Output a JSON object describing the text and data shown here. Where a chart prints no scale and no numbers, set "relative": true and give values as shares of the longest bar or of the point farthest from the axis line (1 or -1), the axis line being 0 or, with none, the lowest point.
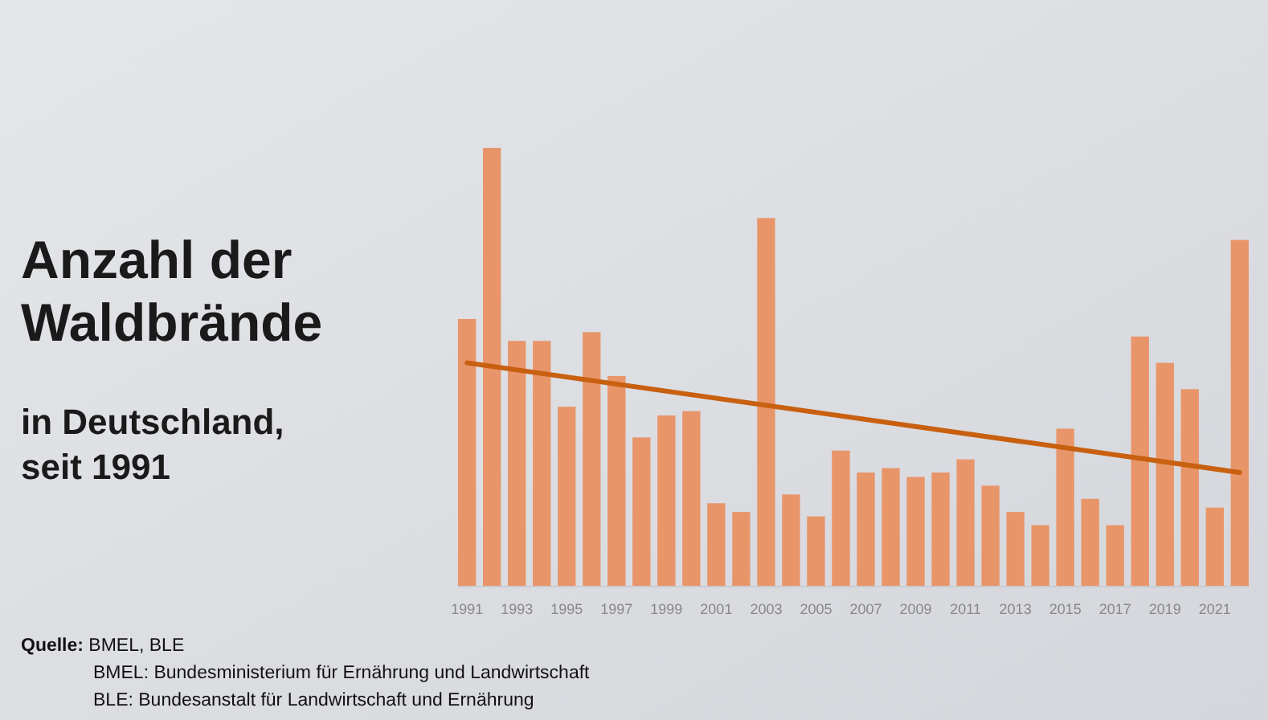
{
  "chart_data": {
    "type": "bar",
    "title": "Anzahl der\nWaldbrände",
    "subtitle": "in Deutschland,\nseit 1991",
    "relative": true,
    "categories": [
      "1991",
      null,
      "1993",
      null,
      "1995",
      null,
      "1997",
      null,
      "1999",
      null,
      "2001",
      null,
      "2003",
      null,
      "2005",
      null,
      "2007",
      null,
      "2009",
      null,
      "2011",
      null,
      "2013",
      null,
      "2015",
      null,
      "2017",
      null,
      "2019",
      null,
      "2021",
      null
    ],
    "series": [
      {
        "color": "#e8956a",
        "values": [
          0.61,
          1,
          0.56,
          0.56,
          0.41,
          0.58,
          0.48,
          0.34,
          0.39,
          0.4,
          0.19,
          0.17,
          0.84,
          0.21,
          0.16,
          0.31,
          0.26,
          0.27,
          0.25,
          0.26,
          0.29,
          0.23,
          0.17,
          0.14,
          0.36,
          0.2,
          0.14,
          0.57,
          0.51,
          0.45,
          0.18,
          0.79
        ]
      },
      {
        "type": "line",
        "color": "#c8600f",
        "values": [
          0.51,
          null,
          null,
          null,
          null,
          null,
          null,
          null,
          null,
          null,
          null,
          null,
          null,
          null,
          null,
          null,
          null,
          null,
          null,
          null,
          null,
          null,
          null,
          null,
          null,
          null,
          null,
          null,
          null,
          null,
          null,
          0.26
        ]
      }
    ],
    "annotations": [
      "Quelle: BMEL, BLE",
      "BMEL: Bundesministerium für Ernährung und Landwirtschaft",
      "BLE: Bundesanstalt für Landwirtschaft und Ernährung"
    ]
  }
}
